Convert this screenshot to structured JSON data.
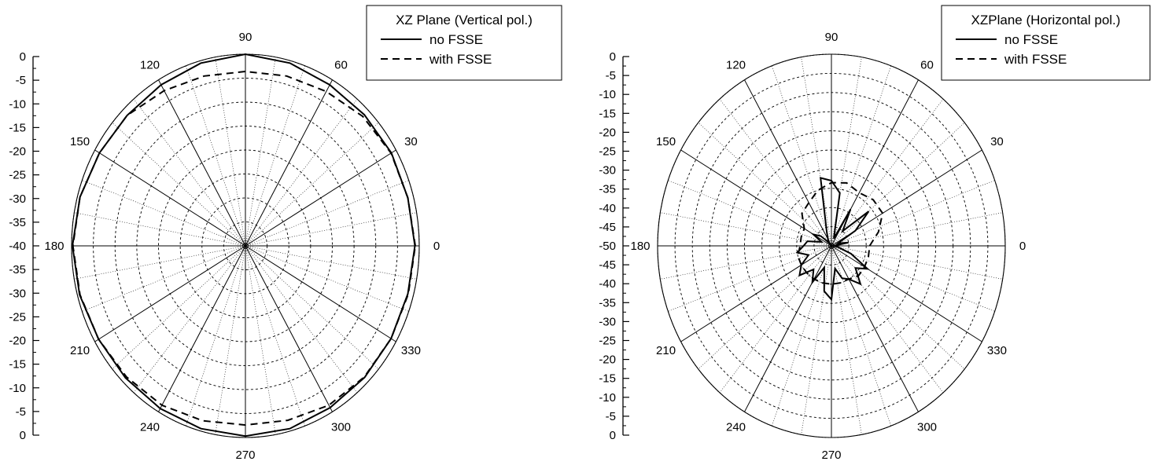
{
  "chart_data": [
    {
      "type": "polar-line",
      "angular_unit": "degrees",
      "radial_range_db": [
        -40,
        0
      ],
      "radial_tick_labels": [
        "0",
        "-5",
        "-10",
        "-15",
        "-20",
        "-25",
        "-30",
        "-35",
        "-40",
        "-35",
        "-30",
        "-25",
        "-20",
        "-15",
        "-10",
        "-5",
        "0"
      ],
      "angular_tick_labels": [
        "0",
        "30",
        "60",
        "90",
        "120",
        "150",
        "180",
        "210",
        "240",
        "270",
        "300",
        "330"
      ],
      "grid": true,
      "legend": {
        "title": "XZ Plane (Vertical pol.)",
        "placement": "top-right",
        "entries": [
          "no FSSE",
          "with FSSE"
        ]
      },
      "series": [
        {
          "name": "no FSSE",
          "style": "solid",
          "angles": [
            0,
            15,
            30,
            45,
            60,
            75,
            90,
            105,
            120,
            135,
            150,
            165,
            180,
            195,
            210,
            225,
            240,
            255,
            270,
            285,
            300,
            315,
            330,
            345
          ],
          "values": [
            -1.0,
            -1.3,
            -1.2,
            -1.3,
            -1.2,
            -0.5,
            0.0,
            -0.5,
            -1.2,
            -1.5,
            -1.2,
            -0.6,
            -0.2,
            -0.5,
            -1.0,
            -1.0,
            -0.8,
            -0.5,
            -0.3,
            -0.5,
            -1.0,
            -1.2,
            -1.3,
            -1.3
          ]
        },
        {
          "name": "with FSSE",
          "style": "dashed",
          "angles": [
            0,
            15,
            30,
            45,
            60,
            75,
            90,
            105,
            120,
            135,
            150,
            165,
            180,
            195,
            210,
            225,
            240,
            255,
            270,
            285,
            300,
            315,
            330,
            345
          ],
          "values": [
            -0.9,
            -1.3,
            -1.3,
            -1.8,
            -2.8,
            -3.3,
            -3.6,
            -3.3,
            -2.6,
            -1.5,
            -1.2,
            -0.6,
            -0.3,
            -0.6,
            -1.0,
            -1.3,
            -1.6,
            -2.2,
            -2.6,
            -2.3,
            -1.6,
            -1.3,
            -1.3,
            -1.2
          ]
        }
      ]
    },
    {
      "type": "polar-line",
      "angular_unit": "degrees",
      "radial_range_db": [
        -50,
        0
      ],
      "radial_tick_labels": [
        "0",
        "-5",
        "-10",
        "-15",
        "-20",
        "-25",
        "-30",
        "-35",
        "-40",
        "-45",
        "-50",
        "-45",
        "-40",
        "-35",
        "-30",
        "-25",
        "-20",
        "-15",
        "-10",
        "-5",
        "0"
      ],
      "angular_tick_labels": [
        "0",
        "30",
        "60",
        "90",
        "120",
        "150",
        "180",
        "210",
        "240",
        "270",
        "300",
        "330"
      ],
      "grid": true,
      "legend": {
        "title": "XZPlane (Horizontal pol.)",
        "placement": "top-right",
        "entries": [
          "no FSSE",
          "with FSSE"
        ]
      },
      "series": [
        {
          "name": "no FSSE",
          "style": "solid",
          "angles": [
            0,
            10,
            20,
            30,
            40,
            50,
            60,
            70,
            80,
            90,
            100,
            110,
            120,
            130,
            140,
            150,
            160,
            170,
            180,
            190,
            200,
            210,
            220,
            230,
            240,
            250,
            260,
            270,
            280,
            290,
            300,
            310,
            320,
            330,
            340,
            350
          ],
          "values": [
            -49.5,
            -45.0,
            -48.0,
            -42.0,
            -36.0,
            -45.0,
            -39.0,
            -48.0,
            -36.0,
            -33.0,
            -32.0,
            -46.0,
            -48.0,
            -49.0,
            -46.0,
            -44.0,
            -47.0,
            -43.0,
            -42.0,
            -40.0,
            -43.0,
            -40.0,
            -38.0,
            -42.0,
            -39.0,
            -44.0,
            -38.0,
            -36.0,
            -44.0,
            -41.0,
            -40.0,
            -37.0,
            -41.0,
            -38.0,
            -44.0,
            -48.0
          ]
        },
        {
          "name": "with FSSE",
          "style": "dashed",
          "angles": [
            0,
            15,
            30,
            45,
            60,
            75,
            90,
            105,
            120,
            135,
            150,
            165,
            180,
            195,
            210,
            225,
            240,
            255,
            270,
            285,
            300,
            315,
            330,
            345
          ],
          "values": [
            -39.0,
            -36.0,
            -33.0,
            -33.0,
            -34.0,
            -33.0,
            -33.5,
            -35.0,
            -37.0,
            -38.0,
            -41.0,
            -41.0,
            -41.0,
            -40.0,
            -40.0,
            -40.0,
            -40.0,
            -40.0,
            -40.0,
            -40.0,
            -40.0,
            -39.0,
            -39.0,
            -39.0
          ]
        }
      ]
    }
  ]
}
